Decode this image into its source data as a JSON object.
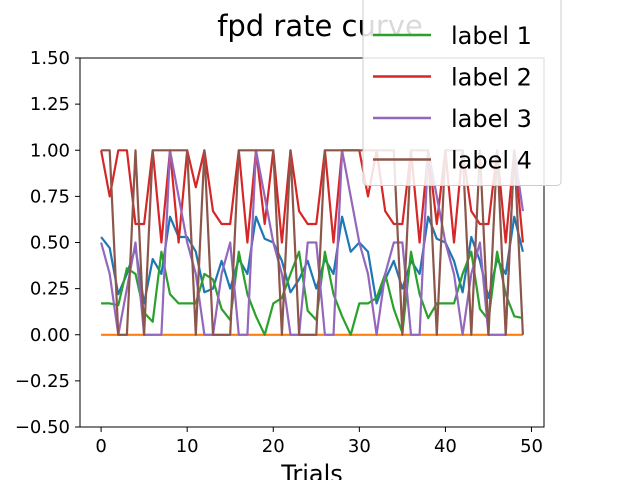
{
  "chart_data": {
    "type": "line",
    "title": "fpd rate curve",
    "xlabel": "Trials",
    "ylabel": "",
    "xlim": [
      -2.45,
      51.45
    ],
    "ylim": [
      -0.5,
      1.5
    ],
    "xticks": [
      0,
      10,
      20,
      30,
      40,
      50
    ],
    "xtick_labels": [
      "0",
      "10",
      "20",
      "30",
      "40",
      "50"
    ],
    "yticks": [
      -0.5,
      -0.25,
      0.0,
      0.25,
      0.5,
      0.75,
      1.0,
      1.25,
      1.5
    ],
    "ytick_labels": [
      "−0.50",
      "−0.25",
      "0.00",
      "0.25",
      "0.50",
      "0.75",
      "1.00",
      "1.25",
      "1.50"
    ],
    "grid": false,
    "legend_position": "top-right",
    "x": [
      0,
      1,
      2,
      3,
      4,
      5,
      6,
      7,
      8,
      9,
      10,
      11,
      12,
      13,
      14,
      15,
      16,
      17,
      18,
      19,
      20,
      21,
      22,
      23,
      24,
      25,
      26,
      27,
      28,
      29,
      30,
      31,
      32,
      33,
      34,
      35,
      36,
      37,
      38,
      39,
      40,
      41,
      42,
      43,
      44,
      45,
      46,
      47,
      48,
      49
    ],
    "series": [
      {
        "name": "",
        "color": "#1f77b4",
        "values": [
          0.53,
          0.47,
          0.22,
          0.33,
          0.47,
          0.17,
          0.41,
          0.33,
          0.64,
          0.53,
          0.53,
          0.45,
          0.23,
          0.25,
          0.4,
          0.25,
          0.41,
          0.33,
          0.64,
          0.52,
          0.5,
          0.4,
          0.23,
          0.3,
          0.4,
          0.25,
          0.41,
          0.33,
          0.64,
          0.45,
          0.5,
          0.45,
          0.17,
          0.3,
          0.4,
          0.25,
          0.4,
          0.33,
          0.64,
          0.52,
          0.5,
          0.4,
          0.23,
          0.53,
          0.4,
          0.2,
          0.41,
          0.33,
          0.64,
          0.45
        ]
      },
      {
        "name": "",
        "color": "#ff7f0e",
        "values": [
          0,
          0,
          0,
          0,
          0,
          0,
          0,
          0,
          0,
          0,
          0,
          0,
          0,
          0,
          0,
          0,
          0,
          0,
          0,
          0,
          0,
          0,
          0,
          0,
          0,
          0,
          0,
          0,
          0,
          0,
          0,
          0,
          0,
          0,
          0,
          0,
          0,
          0,
          0,
          0,
          0,
          0,
          0,
          0,
          0,
          0,
          0,
          0,
          0,
          0
        ]
      },
      {
        "name": "label 1",
        "color": "#2ca02c",
        "values": [
          0.17,
          0.17,
          0.16,
          0.36,
          0.33,
          0.12,
          0.07,
          0.45,
          0.22,
          0.17,
          0.17,
          0.17,
          0.33,
          0.3,
          0.14,
          0.08,
          0.45,
          0.22,
          0.1,
          0.0,
          0.17,
          0.2,
          0.33,
          0.45,
          0.13,
          0.08,
          0.45,
          0.22,
          0.1,
          0.0,
          0.17,
          0.17,
          0.2,
          0.33,
          0.14,
          0.01,
          0.45,
          0.22,
          0.09,
          0.17,
          0.17,
          0.17,
          0.33,
          0.45,
          0.14,
          0.08,
          0.45,
          0.22,
          0.1,
          0.09
        ]
      },
      {
        "name": "label 2",
        "color": "#d62728",
        "values": [
          1,
          0.75,
          1,
          1,
          0.6,
          0.6,
          1,
          0.5,
          1,
          0.5,
          1,
          0.8,
          1,
          0.67,
          0.6,
          0.6,
          1,
          0.5,
          1,
          0.6,
          1,
          0.5,
          1,
          0.67,
          0.6,
          0.6,
          1,
          0.5,
          1,
          1,
          1,
          0.75,
          1,
          0.67,
          0.6,
          0.6,
          1,
          0.5,
          1,
          0.6,
          1,
          0.5,
          1,
          0.67,
          0.6,
          0.6,
          1,
          0.5,
          1,
          0.5
        ]
      },
      {
        "name": "label 3",
        "color": "#9467bd",
        "values": [
          0.5,
          0.33,
          0,
          0.25,
          0.5,
          0,
          0,
          0,
          1,
          0.75,
          0.5,
          0.33,
          0,
          0,
          0.33,
          0.5,
          0,
          0,
          1,
          0.75,
          0.5,
          0.33,
          0,
          0,
          0.5,
          0.5,
          0,
          0,
          1,
          0.75,
          0.5,
          0.33,
          0,
          0.33,
          0.5,
          0.5,
          0,
          0,
          1,
          0.75,
          0.5,
          0.33,
          0,
          0.33,
          0.5,
          0,
          0,
          0,
          1,
          0.67
        ]
      },
      {
        "name": "label 4",
        "color": "#8c564b",
        "values": [
          1,
          1,
          0,
          0,
          1,
          0,
          1,
          1,
          1,
          1,
          1,
          0,
          1,
          0,
          0,
          0,
          1,
          1,
          1,
          1,
          1,
          0,
          1,
          0,
          0,
          0,
          1,
          1,
          1,
          1,
          1,
          1,
          1,
          1,
          1,
          0,
          1,
          1,
          1,
          0,
          1,
          1,
          1,
          0,
          1,
          0,
          1,
          0,
          1,
          0
        ]
      }
    ]
  }
}
